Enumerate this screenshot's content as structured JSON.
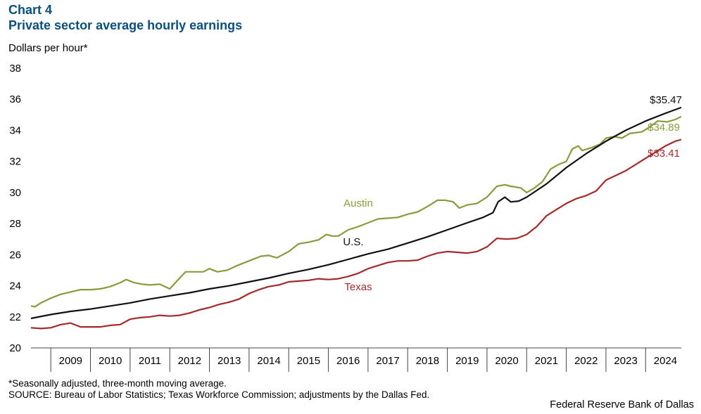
{
  "header": {
    "label": "Chart 4",
    "title": "Private sector average hourly earnings",
    "y_unit": "Dollars per hour*"
  },
  "footer": {
    "note": "*Seasonally adjusted, three-month moving average.",
    "source": "SOURCE: Bureau of Labor Statistics; Texas Workforce Commission; adjustments by the Dallas Fed.",
    "credit": "Federal Reserve Bank of Dallas"
  },
  "chart_data": {
    "type": "line",
    "title": "Private sector average hourly earnings",
    "ylabel": "Dollars per hour*",
    "xlabel": "",
    "ylim": [
      20,
      38
    ],
    "yticks": [
      "20",
      "22",
      "24",
      "26",
      "28",
      "30",
      "32",
      "34",
      "36",
      "38"
    ],
    "xlim": [
      2008.5,
      2024.9
    ],
    "years": [
      "2009",
      "2010",
      "2011",
      "2012",
      "2013",
      "2014",
      "2015",
      "2016",
      "2017",
      "2018",
      "2019",
      "2020",
      "2021",
      "2022",
      "2023",
      "2024"
    ],
    "grid": false,
    "series": [
      {
        "name": "Austin",
        "label": "Austin",
        "end_label": "$34.89",
        "color": "#8a9a3b",
        "points": [
          [
            2008.5,
            22.7
          ],
          [
            2008.6,
            22.65
          ],
          [
            2008.75,
            22.9
          ],
          [
            2009.0,
            23.2
          ],
          [
            2009.25,
            23.45
          ],
          [
            2009.5,
            23.6
          ],
          [
            2009.75,
            23.75
          ],
          [
            2010.0,
            23.75
          ],
          [
            2010.25,
            23.8
          ],
          [
            2010.5,
            23.95
          ],
          [
            2010.75,
            24.2
          ],
          [
            2010.9,
            24.4
          ],
          [
            2011.1,
            24.2
          ],
          [
            2011.3,
            24.1
          ],
          [
            2011.5,
            24.05
          ],
          [
            2011.75,
            24.1
          ],
          [
            2012.0,
            23.8
          ],
          [
            2012.25,
            24.5
          ],
          [
            2012.4,
            24.9
          ],
          [
            2012.6,
            24.9
          ],
          [
            2012.85,
            24.9
          ],
          [
            2013.0,
            25.1
          ],
          [
            2013.2,
            24.9
          ],
          [
            2013.45,
            25.0
          ],
          [
            2013.7,
            25.3
          ],
          [
            2014.0,
            25.6
          ],
          [
            2014.3,
            25.9
          ],
          [
            2014.5,
            25.95
          ],
          [
            2014.7,
            25.8
          ],
          [
            2015.0,
            26.2
          ],
          [
            2015.25,
            26.7
          ],
          [
            2015.5,
            26.8
          ],
          [
            2015.75,
            26.95
          ],
          [
            2015.95,
            27.3
          ],
          [
            2016.1,
            27.2
          ],
          [
            2016.25,
            27.2
          ],
          [
            2016.5,
            27.6
          ],
          [
            2016.75,
            27.8
          ],
          [
            2017.0,
            28.05
          ],
          [
            2017.25,
            28.3
          ],
          [
            2017.5,
            28.35
          ],
          [
            2017.75,
            28.4
          ],
          [
            2018.0,
            28.6
          ],
          [
            2018.25,
            28.75
          ],
          [
            2018.5,
            29.1
          ],
          [
            2018.75,
            29.5
          ],
          [
            2018.95,
            29.5
          ],
          [
            2019.15,
            29.4
          ],
          [
            2019.3,
            29.0
          ],
          [
            2019.5,
            29.2
          ],
          [
            2019.75,
            29.3
          ],
          [
            2020.0,
            29.7
          ],
          [
            2020.25,
            30.4
          ],
          [
            2020.45,
            30.5
          ],
          [
            2020.6,
            30.4
          ],
          [
            2020.85,
            30.3
          ],
          [
            2021.0,
            30.0
          ],
          [
            2021.2,
            30.3
          ],
          [
            2021.4,
            30.7
          ],
          [
            2021.6,
            31.5
          ],
          [
            2021.8,
            31.8
          ],
          [
            2022.0,
            32.0
          ],
          [
            2022.15,
            32.8
          ],
          [
            2022.3,
            33.0
          ],
          [
            2022.4,
            32.7
          ],
          [
            2022.65,
            32.9
          ],
          [
            2022.85,
            33.1
          ],
          [
            2023.0,
            33.5
          ],
          [
            2023.2,
            33.6
          ],
          [
            2023.4,
            33.5
          ],
          [
            2023.6,
            33.8
          ],
          [
            2023.9,
            33.9
          ],
          [
            2024.1,
            34.2
          ],
          [
            2024.3,
            34.6
          ],
          [
            2024.55,
            34.55
          ],
          [
            2024.75,
            34.7
          ],
          [
            2024.9,
            34.89
          ]
        ]
      },
      {
        "name": "U.S.",
        "label": "U.S.",
        "end_label": "$35.47",
        "color": "#111111",
        "points": [
          [
            2008.5,
            21.9
          ],
          [
            2009.0,
            22.15
          ],
          [
            2009.5,
            22.35
          ],
          [
            2010.0,
            22.5
          ],
          [
            2010.5,
            22.7
          ],
          [
            2011.0,
            22.9
          ],
          [
            2011.5,
            23.15
          ],
          [
            2012.0,
            23.35
          ],
          [
            2012.5,
            23.55
          ],
          [
            2013.0,
            23.8
          ],
          [
            2013.5,
            24.0
          ],
          [
            2014.0,
            24.25
          ],
          [
            2014.5,
            24.5
          ],
          [
            2015.0,
            24.8
          ],
          [
            2015.5,
            25.05
          ],
          [
            2016.0,
            25.35
          ],
          [
            2016.5,
            25.7
          ],
          [
            2017.0,
            26.05
          ],
          [
            2017.5,
            26.35
          ],
          [
            2018.0,
            26.75
          ],
          [
            2018.5,
            27.15
          ],
          [
            2019.0,
            27.6
          ],
          [
            2019.5,
            28.05
          ],
          [
            2019.9,
            28.4
          ],
          [
            2020.15,
            28.7
          ],
          [
            2020.28,
            29.4
          ],
          [
            2020.45,
            29.7
          ],
          [
            2020.6,
            29.4
          ],
          [
            2020.8,
            29.45
          ],
          [
            2021.0,
            29.7
          ],
          [
            2021.5,
            30.55
          ],
          [
            2022.0,
            31.6
          ],
          [
            2022.5,
            32.5
          ],
          [
            2023.0,
            33.3
          ],
          [
            2023.5,
            34.0
          ],
          [
            2024.0,
            34.6
          ],
          [
            2024.5,
            35.1
          ],
          [
            2024.9,
            35.47
          ]
        ]
      },
      {
        "name": "Texas",
        "label": "Texas",
        "end_label": "$33.41",
        "color": "#a42a2a",
        "points": [
          [
            2008.5,
            21.3
          ],
          [
            2008.75,
            21.25
          ],
          [
            2009.0,
            21.3
          ],
          [
            2009.25,
            21.5
          ],
          [
            2009.5,
            21.6
          ],
          [
            2009.75,
            21.35
          ],
          [
            2010.0,
            21.35
          ],
          [
            2010.25,
            21.35
          ],
          [
            2010.5,
            21.45
          ],
          [
            2010.75,
            21.5
          ],
          [
            2011.0,
            21.85
          ],
          [
            2011.25,
            21.95
          ],
          [
            2011.5,
            22.0
          ],
          [
            2011.75,
            22.1
          ],
          [
            2012.0,
            22.05
          ],
          [
            2012.25,
            22.1
          ],
          [
            2012.5,
            22.25
          ],
          [
            2012.75,
            22.45
          ],
          [
            2013.0,
            22.6
          ],
          [
            2013.25,
            22.8
          ],
          [
            2013.5,
            22.95
          ],
          [
            2013.75,
            23.15
          ],
          [
            2014.0,
            23.5
          ],
          [
            2014.25,
            23.75
          ],
          [
            2014.5,
            23.95
          ],
          [
            2014.75,
            24.05
          ],
          [
            2015.0,
            24.25
          ],
          [
            2015.25,
            24.3
          ],
          [
            2015.5,
            24.35
          ],
          [
            2015.75,
            24.45
          ],
          [
            2016.0,
            24.4
          ],
          [
            2016.25,
            24.45
          ],
          [
            2016.5,
            24.6
          ],
          [
            2016.75,
            24.8
          ],
          [
            2017.0,
            25.1
          ],
          [
            2017.25,
            25.3
          ],
          [
            2017.5,
            25.5
          ],
          [
            2017.75,
            25.6
          ],
          [
            2018.0,
            25.6
          ],
          [
            2018.25,
            25.65
          ],
          [
            2018.5,
            25.9
          ],
          [
            2018.75,
            26.1
          ],
          [
            2019.0,
            26.2
          ],
          [
            2019.25,
            26.15
          ],
          [
            2019.5,
            26.1
          ],
          [
            2019.75,
            26.2
          ],
          [
            2020.0,
            26.5
          ],
          [
            2020.25,
            27.05
          ],
          [
            2020.5,
            27.0
          ],
          [
            2020.75,
            27.05
          ],
          [
            2021.0,
            27.3
          ],
          [
            2021.25,
            27.8
          ],
          [
            2021.5,
            28.5
          ],
          [
            2021.75,
            28.9
          ],
          [
            2022.0,
            29.3
          ],
          [
            2022.25,
            29.6
          ],
          [
            2022.5,
            29.8
          ],
          [
            2022.75,
            30.1
          ],
          [
            2023.0,
            30.8
          ],
          [
            2023.25,
            31.1
          ],
          [
            2023.5,
            31.4
          ],
          [
            2023.75,
            31.8
          ],
          [
            2024.0,
            32.2
          ],
          [
            2024.25,
            32.6
          ],
          [
            2024.5,
            33.0
          ],
          [
            2024.75,
            33.3
          ],
          [
            2024.9,
            33.41
          ]
        ]
      }
    ]
  }
}
